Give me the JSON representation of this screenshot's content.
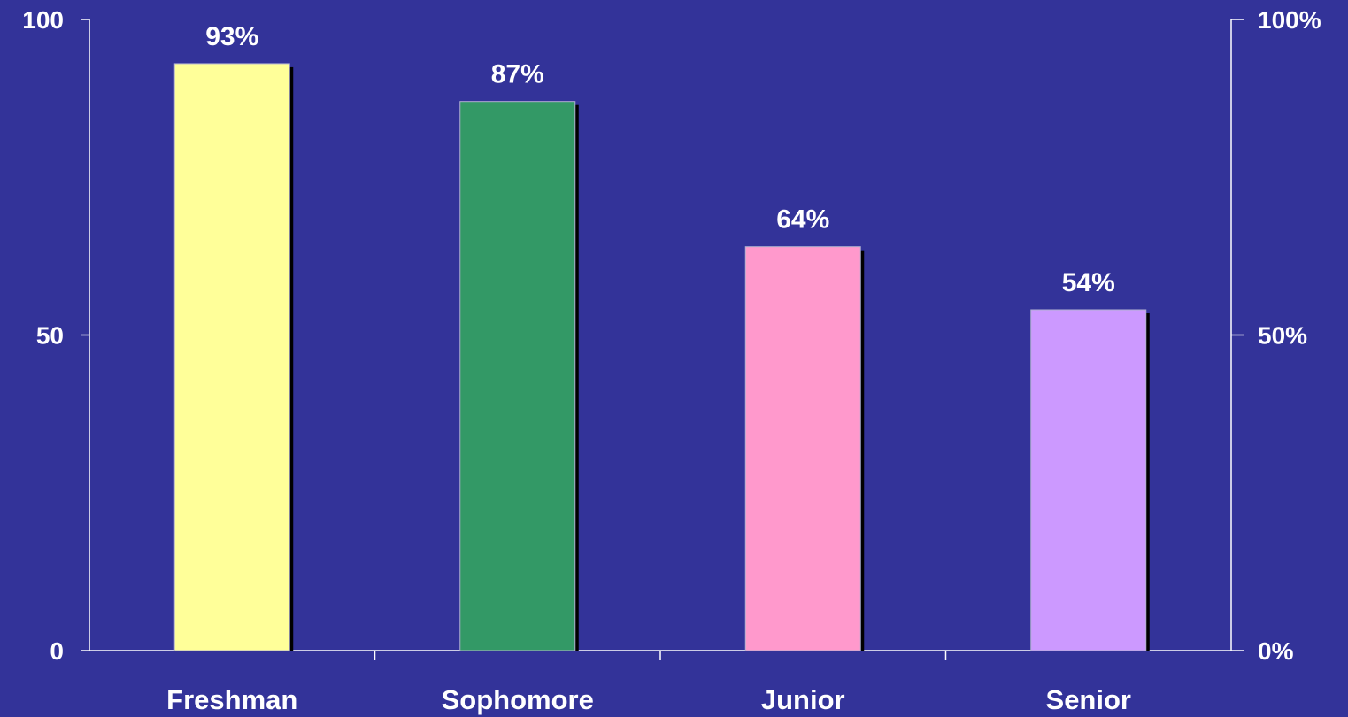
{
  "chart_data": {
    "type": "bar",
    "categories": [
      "Freshman",
      "Sophomore",
      "Junior",
      "Senior"
    ],
    "values": [
      93,
      87,
      64,
      54
    ],
    "data_labels": [
      "93%",
      "87%",
      "64%",
      "54%"
    ],
    "bar_colors": [
      "#FFFF99",
      "#339966",
      "#FF99CC",
      "#CC99FF"
    ],
    "ylim": [
      0,
      100
    ],
    "left_ticks": [
      {
        "value": 0,
        "label": "0"
      },
      {
        "value": 50,
        "label": "50"
      },
      {
        "value": 100,
        "label": "100"
      }
    ],
    "right_ticks": [
      {
        "value": 0,
        "label": "0%"
      },
      {
        "value": 50,
        "label": "50%"
      },
      {
        "value": 100,
        "label": "100%"
      }
    ],
    "grid": false,
    "legend": "none",
    "background_color": "#333399",
    "text_color": "#FFFFFF"
  }
}
